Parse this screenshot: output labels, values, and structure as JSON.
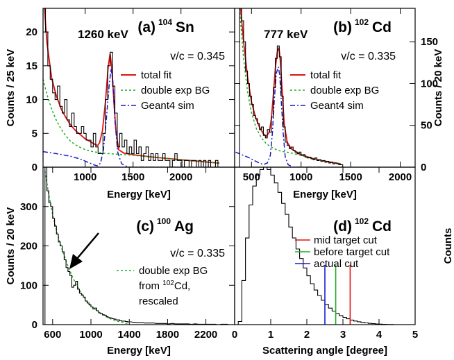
{
  "colors": {
    "fit": "#e01010",
    "bg": "#22aa22",
    "sim": "#1a1acc",
    "hist": "#000000",
    "mid_cut": "#e01010",
    "before_cut": "#22aa22",
    "actual_cut": "#1a1acc"
  },
  "chart_data": [
    {
      "id": "a",
      "type": "line",
      "label": "(a)",
      "nucleus_mass": "104",
      "nucleus_symbol": "Sn",
      "peak_label": "1260 keV",
      "velocity": "v/c = 0.345",
      "xlabel": "Energy [keV]",
      "ylabel": "Counts / 25 keV",
      "xlim": [
        560,
        2560
      ],
      "ylim": [
        0,
        23.5
      ],
      "xticks": [
        1000,
        1500,
        2000
      ],
      "yticks": [
        0,
        5,
        10,
        15,
        20
      ],
      "legend": [
        "total fit",
        "double exp BG",
        "Geant4 sim"
      ],
      "series": [
        {
          "name": "total fit",
          "style": "solid",
          "color_key": "fit",
          "x": [
            575,
            600,
            650,
            700,
            750,
            800,
            850,
            900,
            950,
            1000,
            1050,
            1100,
            1130,
            1150,
            1180,
            1210,
            1240,
            1260,
            1280,
            1300,
            1320,
            1350,
            1400,
            1500,
            1700,
            2000,
            2200,
            2400
          ],
          "y": [
            23.5,
            18.5,
            13.2,
            10.5,
            8.6,
            7.3,
            6.2,
            5.4,
            4.8,
            4.2,
            3.8,
            3.4,
            3.2,
            3.6,
            5.4,
            9.5,
            14.8,
            16.8,
            14.3,
            9.6,
            5.5,
            2.6,
            2.1,
            1.85,
            1.5,
            1.1,
            0.85,
            0.6
          ]
        },
        {
          "name": "double exp BG",
          "style": "dashed",
          "color_key": "bg",
          "x": [
            560,
            600,
            650,
            700,
            750,
            800,
            850,
            900,
            950,
            1000,
            1050,
            1100,
            1150,
            1200,
            1300,
            1500,
            1700,
            2000,
            2200,
            2400
          ],
          "y": [
            13.0,
            10.8,
            8.6,
            6.9,
            5.6,
            4.6,
            3.8,
            3.3,
            2.9,
            2.6,
            2.4,
            2.25,
            2.15,
            2.05,
            1.95,
            1.75,
            1.5,
            1.1,
            0.85,
            0.6
          ]
        },
        {
          "name": "Geant4 sim",
          "style": "dashdot",
          "color_key": "sim",
          "x": [
            560,
            700,
            850,
            950,
            1050,
            1100,
            1130,
            1160,
            1190,
            1220,
            1250,
            1270,
            1290,
            1310,
            1340,
            1380,
            1450,
            1600,
            1800,
            2100
          ],
          "y": [
            2.3,
            2.0,
            1.6,
            1.2,
            0.6,
            0.3,
            0.2,
            0.6,
            2.5,
            7.0,
            12.0,
            14.6,
            12.6,
            7.0,
            2.2,
            0.5,
            0.0,
            0.0,
            0.0,
            0.0
          ]
        },
        {
          "name": "data",
          "style": "hist",
          "color_key": "hist",
          "x": [
            560,
            585,
            610,
            635,
            660,
            685,
            710,
            735,
            760,
            785,
            810,
            835,
            860,
            885,
            910,
            935,
            960,
            985,
            1010,
            1035,
            1060,
            1085,
            1110,
            1135,
            1160,
            1185,
            1210,
            1235,
            1260,
            1285,
            1310,
            1335,
            1360,
            1385,
            1410,
            1435,
            1460,
            1485,
            1510,
            1535,
            1560,
            1585,
            1610,
            1635,
            1660,
            1685,
            1710,
            1735,
            1760,
            1785,
            1810,
            1835,
            1860,
            1885,
            1910,
            1935,
            1960,
            1985,
            2010,
            2035,
            2060,
            2085,
            2110,
            2135,
            2160,
            2185,
            2210,
            2235,
            2260,
            2285,
            2310,
            2335,
            2360,
            2385
          ],
          "y": [
            23.5,
            20,
            15,
            13,
            11,
            10,
            12,
            9,
            8,
            10,
            7,
            6,
            8,
            6,
            5,
            5,
            6,
            5,
            4,
            4,
            3,
            5,
            3,
            2,
            2,
            5,
            10,
            15,
            17,
            12,
            8,
            3,
            5,
            3,
            4,
            2,
            3,
            2,
            4,
            2,
            3,
            1,
            2,
            3,
            1,
            2,
            1,
            2,
            1,
            1,
            2,
            1,
            1,
            0,
            1,
            2,
            1,
            1,
            0,
            1,
            1,
            0,
            1,
            1,
            0,
            1,
            0,
            1,
            0,
            1,
            0,
            0,
            1,
            0
          ]
        }
      ]
    },
    {
      "id": "b",
      "type": "line",
      "label": "(b)",
      "nucleus_mass": "102",
      "nucleus_symbol": "Cd",
      "peak_label": "777 keV",
      "velocity": "v/c = 0.335",
      "xlabel": "Energy [keV]",
      "ylabel": "Counts / 20 keV",
      "xlim": [
        330,
        2150
      ],
      "ylim": [
        0,
        190
      ],
      "xticks": [
        500,
        1000,
        1500,
        2000
      ],
      "yticks": [
        0,
        50,
        100,
        150
      ],
      "legend": [
        "total fit",
        "double exp BG",
        "Geant4 sim"
      ],
      "series": [
        {
          "name": "total fit",
          "style": "solid",
          "color_key": "fit",
          "x": [
            390,
            420,
            460,
            500,
            540,
            580,
            620,
            650,
            680,
            700,
            720,
            740,
            760,
            777,
            790,
            810,
            830,
            860,
            900,
            1000,
            1100,
            1200,
            1300,
            1400
          ],
          "y": [
            190,
            150,
            108,
            78,
            60,
            48,
            40,
            37,
            42,
            58,
            86,
            118,
            138,
            143,
            128,
            90,
            52,
            30,
            22,
            15,
            11,
            8,
            6,
            4
          ]
        },
        {
          "name": "double exp BG",
          "style": "dashed",
          "color_key": "bg",
          "x": [
            380,
            420,
            460,
            500,
            550,
            600,
            650,
            700,
            750,
            800,
            850,
            900,
            1000,
            1100,
            1200,
            1300,
            1400
          ],
          "y": [
            190,
            130,
            90,
            65,
            46,
            35,
            28,
            24,
            21,
            19,
            18,
            17,
            14,
            11,
            8,
            6,
            4
          ]
        },
        {
          "name": "Geant4 sim",
          "style": "dashdot",
          "color_key": "sim",
          "x": [
            340,
            400,
            480,
            560,
            620,
            660,
            690,
            710,
            730,
            750,
            770,
            785,
            800,
            820,
            840,
            870,
            920,
            1000,
            1200
          ],
          "y": [
            18,
            15,
            11,
            6,
            3,
            5,
            14,
            40,
            80,
            112,
            120,
            110,
            80,
            40,
            12,
            3,
            0,
            0,
            0
          ]
        },
        {
          "name": "data",
          "style": "hist",
          "color_key": "hist",
          "x": [
            380,
            400,
            420,
            440,
            460,
            480,
            500,
            520,
            540,
            560,
            580,
            600,
            620,
            640,
            660,
            680,
            700,
            720,
            740,
            760,
            780,
            800,
            820,
            840,
            860,
            880,
            900,
            920,
            940,
            960,
            980,
            1000,
            1020,
            1040,
            1060,
            1080,
            1100,
            1120,
            1140,
            1160,
            1180,
            1200,
            1220,
            1240,
            1260,
            1280,
            1300,
            1320,
            1340,
            1360,
            1380,
            1400
          ],
          "y": [
            190,
            175,
            150,
            115,
            100,
            85,
            75,
            62,
            58,
            52,
            45,
            48,
            38,
            35,
            45,
            42,
            60,
            95,
            130,
            145,
            132,
            85,
            48,
            30,
            26,
            22,
            24,
            20,
            18,
            16,
            18,
            14,
            15,
            12,
            11,
            12,
            10,
            9,
            11,
            8,
            9,
            7,
            8,
            6,
            7,
            5,
            6,
            4,
            5,
            4,
            3,
            3
          ]
        }
      ]
    },
    {
      "id": "c",
      "type": "line",
      "label": "(c)",
      "nucleus_mass": "100",
      "nucleus_symbol": "Ag",
      "velocity": "v/c = 0.335",
      "xlabel": "Energy [keV]",
      "ylabel": "Counts / 20 keV",
      "xlim": [
        500,
        2500
      ],
      "ylim": [
        0,
        400
      ],
      "xticks": [
        600,
        1000,
        1400,
        1800,
        2200
      ],
      "yticks": [
        0,
        100,
        200,
        300
      ],
      "legend_lines": [
        "double exp BG",
        "from ",
        "Cd,",
        "rescaled"
      ],
      "legend_sup": "102",
      "series": [
        {
          "name": "double exp BG",
          "style": "dashed",
          "color_key": "bg",
          "x": [
            520,
            560,
            600,
            650,
            700,
            750,
            800,
            850,
            900,
            950,
            1000,
            1100,
            1200,
            1300,
            1400
          ],
          "y": [
            390,
            330,
            280,
            230,
            190,
            155,
            125,
            100,
            80,
            62,
            48,
            28,
            15,
            7,
            2
          ]
        },
        {
          "name": "data",
          "style": "hist",
          "color_key": "hist",
          "x": [
            520,
            540,
            560,
            580,
            600,
            620,
            640,
            660,
            680,
            700,
            720,
            740,
            760,
            780,
            800,
            820,
            840,
            860,
            880,
            900,
            920,
            940,
            960,
            980,
            1000,
            1020,
            1040,
            1060,
            1080,
            1100,
            1120,
            1140,
            1160,
            1180,
            1200,
            1220,
            1240,
            1260,
            1280,
            1300,
            1320,
            1340,
            1360,
            1380,
            1400,
            1440,
            1480,
            1520,
            1560,
            1600,
            1640,
            1680,
            1720,
            1760,
            1800,
            1840,
            1880,
            1920,
            1960,
            2000,
            2040,
            2080,
            2120,
            2160,
            2200,
            2240,
            2280,
            2320,
            2360,
            2400,
            2440
          ],
          "y": [
            400,
            340,
            310,
            300,
            270,
            250,
            230,
            210,
            200,
            185,
            165,
            145,
            135,
            125,
            95,
            100,
            110,
            90,
            80,
            75,
            70,
            60,
            55,
            50,
            45,
            40,
            42,
            35,
            30,
            28,
            25,
            24,
            20,
            18,
            17,
            15,
            14,
            12,
            12,
            10,
            9,
            9,
            8,
            7,
            7,
            6,
            5,
            5,
            4,
            4,
            4,
            3,
            3,
            3,
            2,
            3,
            2,
            2,
            2,
            2,
            1,
            2,
            1,
            1,
            1,
            1,
            1,
            0,
            1,
            1,
            0
          ]
        }
      ]
    },
    {
      "id": "d",
      "type": "line",
      "label": "(d)",
      "nucleus_mass": "102",
      "nucleus_symbol": "Cd",
      "xlabel": "Scattering angle [degree]",
      "ylabel": "Counts",
      "xlim": [
        0,
        5
      ],
      "ylim": [
        0,
        1
      ],
      "xticks": [
        0,
        1,
        2,
        3,
        4,
        5
      ],
      "legend": [
        "mid target cut",
        "before target cut",
        "actual cut"
      ],
      "cuts": [
        {
          "name": "mid target cut",
          "x": 3.2,
          "color_key": "mid_cut"
        },
        {
          "name": "before target cut",
          "x": 2.8,
          "color_key": "before_cut"
        },
        {
          "name": "actual cut",
          "x": 2.5,
          "color_key": "actual_cut"
        }
      ],
      "cut_height": 0.38,
      "series": [
        {
          "name": "distribution",
          "style": "hist",
          "color_key": "hist",
          "x": [
            0.0,
            0.1,
            0.2,
            0.3,
            0.4,
            0.5,
            0.6,
            0.7,
            0.8,
            0.9,
            1.0,
            1.1,
            1.2,
            1.3,
            1.4,
            1.5,
            1.6,
            1.7,
            1.8,
            1.9,
            2.0,
            2.1,
            2.2,
            2.3,
            2.4,
            2.5,
            2.6,
            2.7,
            2.8,
            2.9,
            3.0,
            3.1,
            3.2,
            3.3,
            3.4,
            3.5,
            3.6,
            3.7,
            3.8,
            3.9,
            4.0,
            4.1,
            4.2,
            4.3,
            4.4,
            4.5
          ],
          "y": [
            0.0,
            0.02,
            0.28,
            0.55,
            0.76,
            0.88,
            0.95,
            0.985,
            1.0,
            0.985,
            0.95,
            0.9,
            0.84,
            0.77,
            0.7,
            0.62,
            0.55,
            0.48,
            0.42,
            0.36,
            0.31,
            0.26,
            0.22,
            0.185,
            0.155,
            0.128,
            0.105,
            0.086,
            0.07,
            0.057,
            0.046,
            0.037,
            0.029,
            0.023,
            0.018,
            0.014,
            0.011,
            0.008,
            0.006,
            0.004,
            0.003,
            0.002,
            0.001,
            0.001,
            0.0,
            0.0
          ]
        }
      ]
    }
  ]
}
